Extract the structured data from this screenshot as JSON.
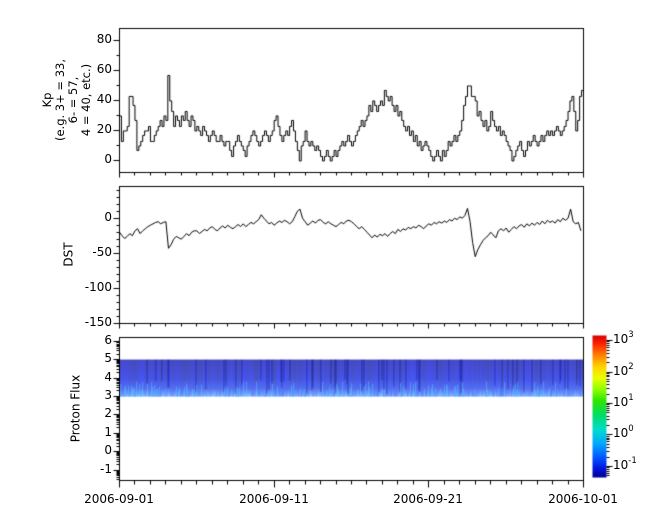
{
  "figure": {
    "background": "#ffffff",
    "axis_color": "#000000",
    "line_color": "#000000"
  },
  "xaxis": {
    "labels": [
      "2006-09-01",
      "2006-09-11",
      "2006-09-21",
      "2006-10-01"
    ],
    "major_days": [
      0,
      10,
      20,
      30
    ],
    "minor_every_days": 1,
    "span_days": 30
  },
  "chart_data": [
    {
      "id": "kp",
      "type": "line",
      "line_style": "step",
      "ylabel_lines": [
        "Kp",
        "(e.g. 3+ = 33,",
        "6- = 57,",
        "4 = 40, etc.)"
      ],
      "ylim": [
        -7.7,
        88.3
      ],
      "yticks": [
        0,
        20,
        40,
        60,
        80
      ],
      "yminor_step": 10,
      "x_unit": "hours_per_sample",
      "samples_per_day": 8,
      "x_range": [
        "2006-09-01",
        "2006-10-01"
      ],
      "values": [
        30,
        13,
        20,
        20,
        23,
        43,
        43,
        37,
        27,
        7,
        10,
        13,
        17,
        20,
        20,
        23,
        13,
        13,
        17,
        20,
        23,
        27,
        23,
        30,
        27,
        57,
        40,
        33,
        23,
        30,
        27,
        23,
        30,
        27,
        33,
        27,
        23,
        30,
        27,
        20,
        23,
        20,
        17,
        23,
        20,
        17,
        13,
        17,
        20,
        17,
        13,
        13,
        17,
        13,
        10,
        13,
        13,
        7,
        3,
        10,
        13,
        17,
        13,
        10,
        7,
        3,
        10,
        13,
        17,
        20,
        17,
        13,
        10,
        13,
        17,
        20,
        17,
        13,
        17,
        20,
        27,
        30,
        23,
        17,
        13,
        17,
        20,
        17,
        23,
        27,
        20,
        13,
        7,
        0,
        10,
        13,
        20,
        13,
        10,
        13,
        10,
        7,
        10,
        7,
        3,
        0,
        3,
        7,
        3,
        0,
        3,
        7,
        3,
        7,
        10,
        13,
        10,
        13,
        17,
        13,
        10,
        13,
        17,
        20,
        23,
        27,
        23,
        27,
        30,
        37,
        33,
        40,
        37,
        33,
        37,
        40,
        37,
        47,
        43,
        40,
        43,
        37,
        33,
        37,
        30,
        33,
        27,
        23,
        20,
        23,
        17,
        20,
        13,
        17,
        10,
        13,
        7,
        10,
        13,
        10,
        7,
        3,
        0,
        3,
        7,
        3,
        0,
        7,
        3,
        7,
        13,
        10,
        13,
        17,
        13,
        17,
        20,
        27,
        37,
        43,
        50,
        50,
        43,
        43,
        40,
        30,
        33,
        27,
        23,
        27,
        20,
        23,
        33,
        27,
        23,
        20,
        23,
        17,
        20,
        17,
        13,
        10,
        7,
        0,
        3,
        7,
        10,
        13,
        7,
        3,
        7,
        13,
        10,
        13,
        17,
        13,
        10,
        13,
        17,
        13,
        17,
        20,
        17,
        20,
        17,
        20,
        23,
        20,
        17,
        20,
        23,
        27,
        33,
        40,
        43,
        33,
        20,
        27,
        43,
        47
      ]
    },
    {
      "id": "dst",
      "type": "line",
      "line_style": "linear",
      "ylabel": "DST",
      "ylim": [
        -150.4,
        45.3
      ],
      "yticks": [
        0,
        -50,
        -100,
        -150
      ],
      "yminor_step": 10,
      "samples_per_day": 6,
      "x_range": [
        "2006-09-01",
        "2006-10-01"
      ],
      "values": [
        -20,
        -25,
        -29,
        -26,
        -22,
        -25,
        -18,
        -15,
        -22,
        -18,
        -15,
        -12,
        -10,
        -8,
        -6,
        -5,
        -8,
        -6,
        -5,
        -43,
        -38,
        -30,
        -26,
        -28,
        -30,
        -26,
        -22,
        -25,
        -20,
        -18,
        -18,
        -22,
        -19,
        -16,
        -18,
        -14,
        -12,
        -16,
        -18,
        -14,
        -11,
        -14,
        -10,
        -13,
        -15,
        -12,
        -9,
        -12,
        -8,
        -12,
        -9,
        -6,
        -8,
        -5,
        -2,
        5,
        0,
        -4,
        -8,
        -6,
        -10,
        -7,
        -4,
        -6,
        -3,
        -5,
        -8,
        -5,
        2,
        10,
        13,
        0,
        -5,
        -10,
        -7,
        -4,
        -7,
        -3,
        -2,
        -6,
        -8,
        -5,
        -8,
        -10,
        -12,
        -9,
        -6,
        -8,
        -4,
        -3,
        -5,
        -8,
        -12,
        -15,
        -12,
        -16,
        -20,
        -24,
        -28,
        -24,
        -27,
        -23,
        -25,
        -22,
        -26,
        -22,
        -19,
        -22,
        -16,
        -19,
        -15,
        -17,
        -13,
        -15,
        -12,
        -14,
        -10,
        -12,
        -15,
        -11,
        -8,
        -10,
        -6,
        -8,
        -5,
        -7,
        -4,
        -6,
        -2,
        -4,
        0,
        -2,
        2,
        0,
        4,
        14,
        -5,
        -35,
        -55,
        -45,
        -38,
        -32,
        -28,
        -25,
        -20,
        -24,
        -28,
        -18,
        -15,
        -18,
        -14,
        -20,
        -16,
        -12,
        -15,
        -11,
        -9,
        -13,
        -8,
        -11,
        -7,
        -10,
        -6,
        -9,
        -4,
        -8,
        -3,
        -6,
        -4,
        -7,
        -2,
        -5,
        0,
        -3,
        0,
        13,
        -5,
        -8,
        -6,
        -18
      ]
    },
    {
      "id": "proton_flux",
      "type": "heatmap",
      "ylabel": "Proton Flux",
      "ylim": [
        -1.55,
        6.2
      ],
      "yticks": [
        6,
        5,
        4,
        3,
        2,
        1,
        0,
        -1
      ],
      "y_minor": "log-decade",
      "band": {
        "y_from": 3,
        "y_to": 5,
        "colors": {
          "top": "#0712b0",
          "upper": "#0a1cd8",
          "lower": "#1a3eee",
          "bottom_base": [
            40,
            100,
            255
          ],
          "streak_bright": "rgba(102,200,255,0.85)",
          "streak_dark": "rgba(2,4,100,0.45)"
        }
      },
      "colorbar": {
        "base": "10",
        "tick_exponents": [
          "3",
          "2",
          "1",
          "0",
          "-1"
        ],
        "top_exp": 3.16,
        "bottom_exp": -1.35,
        "gradient": [
          {
            "pos": 0.0,
            "color": "#d40000"
          },
          {
            "pos": 0.06,
            "color": "#ff2200"
          },
          {
            "pos": 0.13,
            "color": "#ff7700"
          },
          {
            "pos": 0.22,
            "color": "#ffd300"
          },
          {
            "pos": 0.3,
            "color": "#eaff00"
          },
          {
            "pos": 0.38,
            "color": "#8cff00"
          },
          {
            "pos": 0.46,
            "color": "#2ee600"
          },
          {
            "pos": 0.56,
            "color": "#00dd66"
          },
          {
            "pos": 0.66,
            "color": "#00ddc8"
          },
          {
            "pos": 0.76,
            "color": "#00aaff"
          },
          {
            "pos": 0.86,
            "color": "#0055ff"
          },
          {
            "pos": 0.94,
            "color": "#0011dd"
          },
          {
            "pos": 1.0,
            "color": "#000090"
          }
        ]
      }
    }
  ]
}
